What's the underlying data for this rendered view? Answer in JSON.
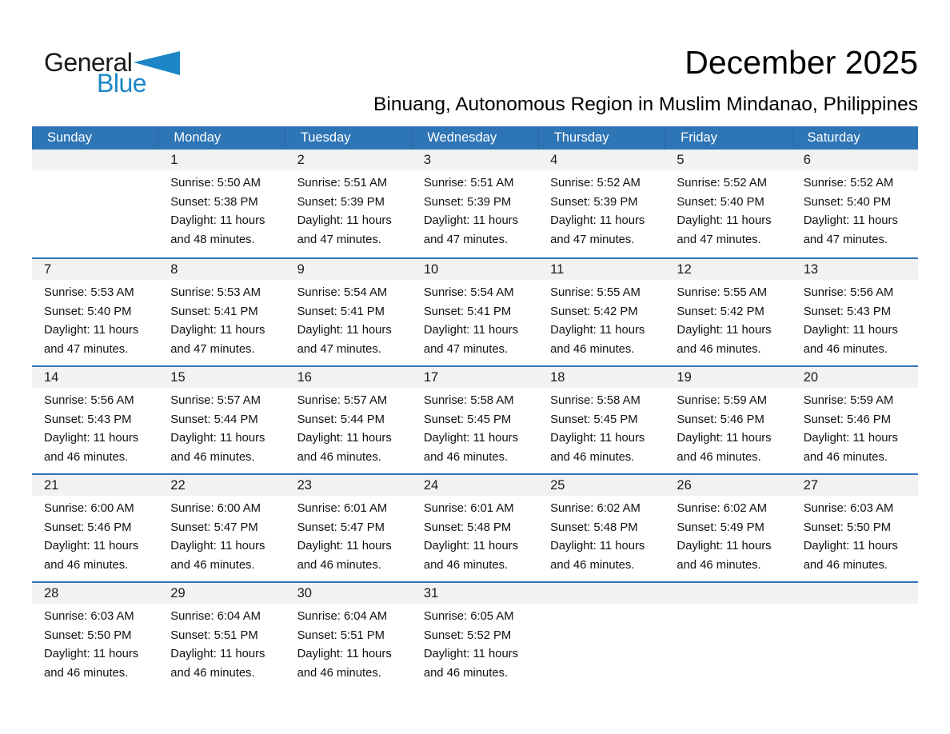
{
  "logo": {
    "general": "General",
    "blue": "Blue"
  },
  "title": "December 2025",
  "subtitle": "Binuang, Autonomous Region in Muslim Mindanao, Philippines",
  "weekdays": [
    "Sunday",
    "Monday",
    "Tuesday",
    "Wednesday",
    "Thursday",
    "Friday",
    "Saturday"
  ],
  "colors": {
    "header_bg": "#2e75b6",
    "week_divider": "#2e75b6",
    "number_band_bg": "#f2f2f2",
    "header_text": "#ffffff",
    "logo_blue": "#1c86c6",
    "body_text": "#111111"
  },
  "weeks": [
    [
      {
        "day": "",
        "lines": []
      },
      {
        "day": "1",
        "lines": [
          "Sunrise: 5:50 AM",
          "Sunset: 5:38 PM",
          "Daylight: 11 hours",
          "and 48 minutes."
        ]
      },
      {
        "day": "2",
        "lines": [
          "Sunrise: 5:51 AM",
          "Sunset: 5:39 PM",
          "Daylight: 11 hours",
          "and 47 minutes."
        ]
      },
      {
        "day": "3",
        "lines": [
          "Sunrise: 5:51 AM",
          "Sunset: 5:39 PM",
          "Daylight: 11 hours",
          "and 47 minutes."
        ]
      },
      {
        "day": "4",
        "lines": [
          "Sunrise: 5:52 AM",
          "Sunset: 5:39 PM",
          "Daylight: 11 hours",
          "and 47 minutes."
        ]
      },
      {
        "day": "5",
        "lines": [
          "Sunrise: 5:52 AM",
          "Sunset: 5:40 PM",
          "Daylight: 11 hours",
          "and 47 minutes."
        ]
      },
      {
        "day": "6",
        "lines": [
          "Sunrise: 5:52 AM",
          "Sunset: 5:40 PM",
          "Daylight: 11 hours",
          "and 47 minutes."
        ]
      }
    ],
    [
      {
        "day": "7",
        "lines": [
          "Sunrise: 5:53 AM",
          "Sunset: 5:40 PM",
          "Daylight: 11 hours",
          "and 47 minutes."
        ]
      },
      {
        "day": "8",
        "lines": [
          "Sunrise: 5:53 AM",
          "Sunset: 5:41 PM",
          "Daylight: 11 hours",
          "and 47 minutes."
        ]
      },
      {
        "day": "9",
        "lines": [
          "Sunrise: 5:54 AM",
          "Sunset: 5:41 PM",
          "Daylight: 11 hours",
          "and 47 minutes."
        ]
      },
      {
        "day": "10",
        "lines": [
          "Sunrise: 5:54 AM",
          "Sunset: 5:41 PM",
          "Daylight: 11 hours",
          "and 47 minutes."
        ]
      },
      {
        "day": "11",
        "lines": [
          "Sunrise: 5:55 AM",
          "Sunset: 5:42 PM",
          "Daylight: 11 hours",
          "and 46 minutes."
        ]
      },
      {
        "day": "12",
        "lines": [
          "Sunrise: 5:55 AM",
          "Sunset: 5:42 PM",
          "Daylight: 11 hours",
          "and 46 minutes."
        ]
      },
      {
        "day": "13",
        "lines": [
          "Sunrise: 5:56 AM",
          "Sunset: 5:43 PM",
          "Daylight: 11 hours",
          "and 46 minutes."
        ]
      }
    ],
    [
      {
        "day": "14",
        "lines": [
          "Sunrise: 5:56 AM",
          "Sunset: 5:43 PM",
          "Daylight: 11 hours",
          "and 46 minutes."
        ]
      },
      {
        "day": "15",
        "lines": [
          "Sunrise: 5:57 AM",
          "Sunset: 5:44 PM",
          "Daylight: 11 hours",
          "and 46 minutes."
        ]
      },
      {
        "day": "16",
        "lines": [
          "Sunrise: 5:57 AM",
          "Sunset: 5:44 PM",
          "Daylight: 11 hours",
          "and 46 minutes."
        ]
      },
      {
        "day": "17",
        "lines": [
          "Sunrise: 5:58 AM",
          "Sunset: 5:45 PM",
          "Daylight: 11 hours",
          "and 46 minutes."
        ]
      },
      {
        "day": "18",
        "lines": [
          "Sunrise: 5:58 AM",
          "Sunset: 5:45 PM",
          "Daylight: 11 hours",
          "and 46 minutes."
        ]
      },
      {
        "day": "19",
        "lines": [
          "Sunrise: 5:59 AM",
          "Sunset: 5:46 PM",
          "Daylight: 11 hours",
          "and 46 minutes."
        ]
      },
      {
        "day": "20",
        "lines": [
          "Sunrise: 5:59 AM",
          "Sunset: 5:46 PM",
          "Daylight: 11 hours",
          "and 46 minutes."
        ]
      }
    ],
    [
      {
        "day": "21",
        "lines": [
          "Sunrise: 6:00 AM",
          "Sunset: 5:46 PM",
          "Daylight: 11 hours",
          "and 46 minutes."
        ]
      },
      {
        "day": "22",
        "lines": [
          "Sunrise: 6:00 AM",
          "Sunset: 5:47 PM",
          "Daylight: 11 hours",
          "and 46 minutes."
        ]
      },
      {
        "day": "23",
        "lines": [
          "Sunrise: 6:01 AM",
          "Sunset: 5:47 PM",
          "Daylight: 11 hours",
          "and 46 minutes."
        ]
      },
      {
        "day": "24",
        "lines": [
          "Sunrise: 6:01 AM",
          "Sunset: 5:48 PM",
          "Daylight: 11 hours",
          "and 46 minutes."
        ]
      },
      {
        "day": "25",
        "lines": [
          "Sunrise: 6:02 AM",
          "Sunset: 5:48 PM",
          "Daylight: 11 hours",
          "and 46 minutes."
        ]
      },
      {
        "day": "26",
        "lines": [
          "Sunrise: 6:02 AM",
          "Sunset: 5:49 PM",
          "Daylight: 11 hours",
          "and 46 minutes."
        ]
      },
      {
        "day": "27",
        "lines": [
          "Sunrise: 6:03 AM",
          "Sunset: 5:50 PM",
          "Daylight: 11 hours",
          "and 46 minutes."
        ]
      }
    ],
    [
      {
        "day": "28",
        "lines": [
          "Sunrise: 6:03 AM",
          "Sunset: 5:50 PM",
          "Daylight: 11 hours",
          "and 46 minutes."
        ]
      },
      {
        "day": "29",
        "lines": [
          "Sunrise: 6:04 AM",
          "Sunset: 5:51 PM",
          "Daylight: 11 hours",
          "and 46 minutes."
        ]
      },
      {
        "day": "30",
        "lines": [
          "Sunrise: 6:04 AM",
          "Sunset: 5:51 PM",
          "Daylight: 11 hours",
          "and 46 minutes."
        ]
      },
      {
        "day": "31",
        "lines": [
          "Sunrise: 6:05 AM",
          "Sunset: 5:52 PM",
          "Daylight: 11 hours",
          "and 46 minutes."
        ]
      },
      {
        "day": "",
        "lines": []
      },
      {
        "day": "",
        "lines": []
      },
      {
        "day": "",
        "lines": []
      }
    ]
  ]
}
